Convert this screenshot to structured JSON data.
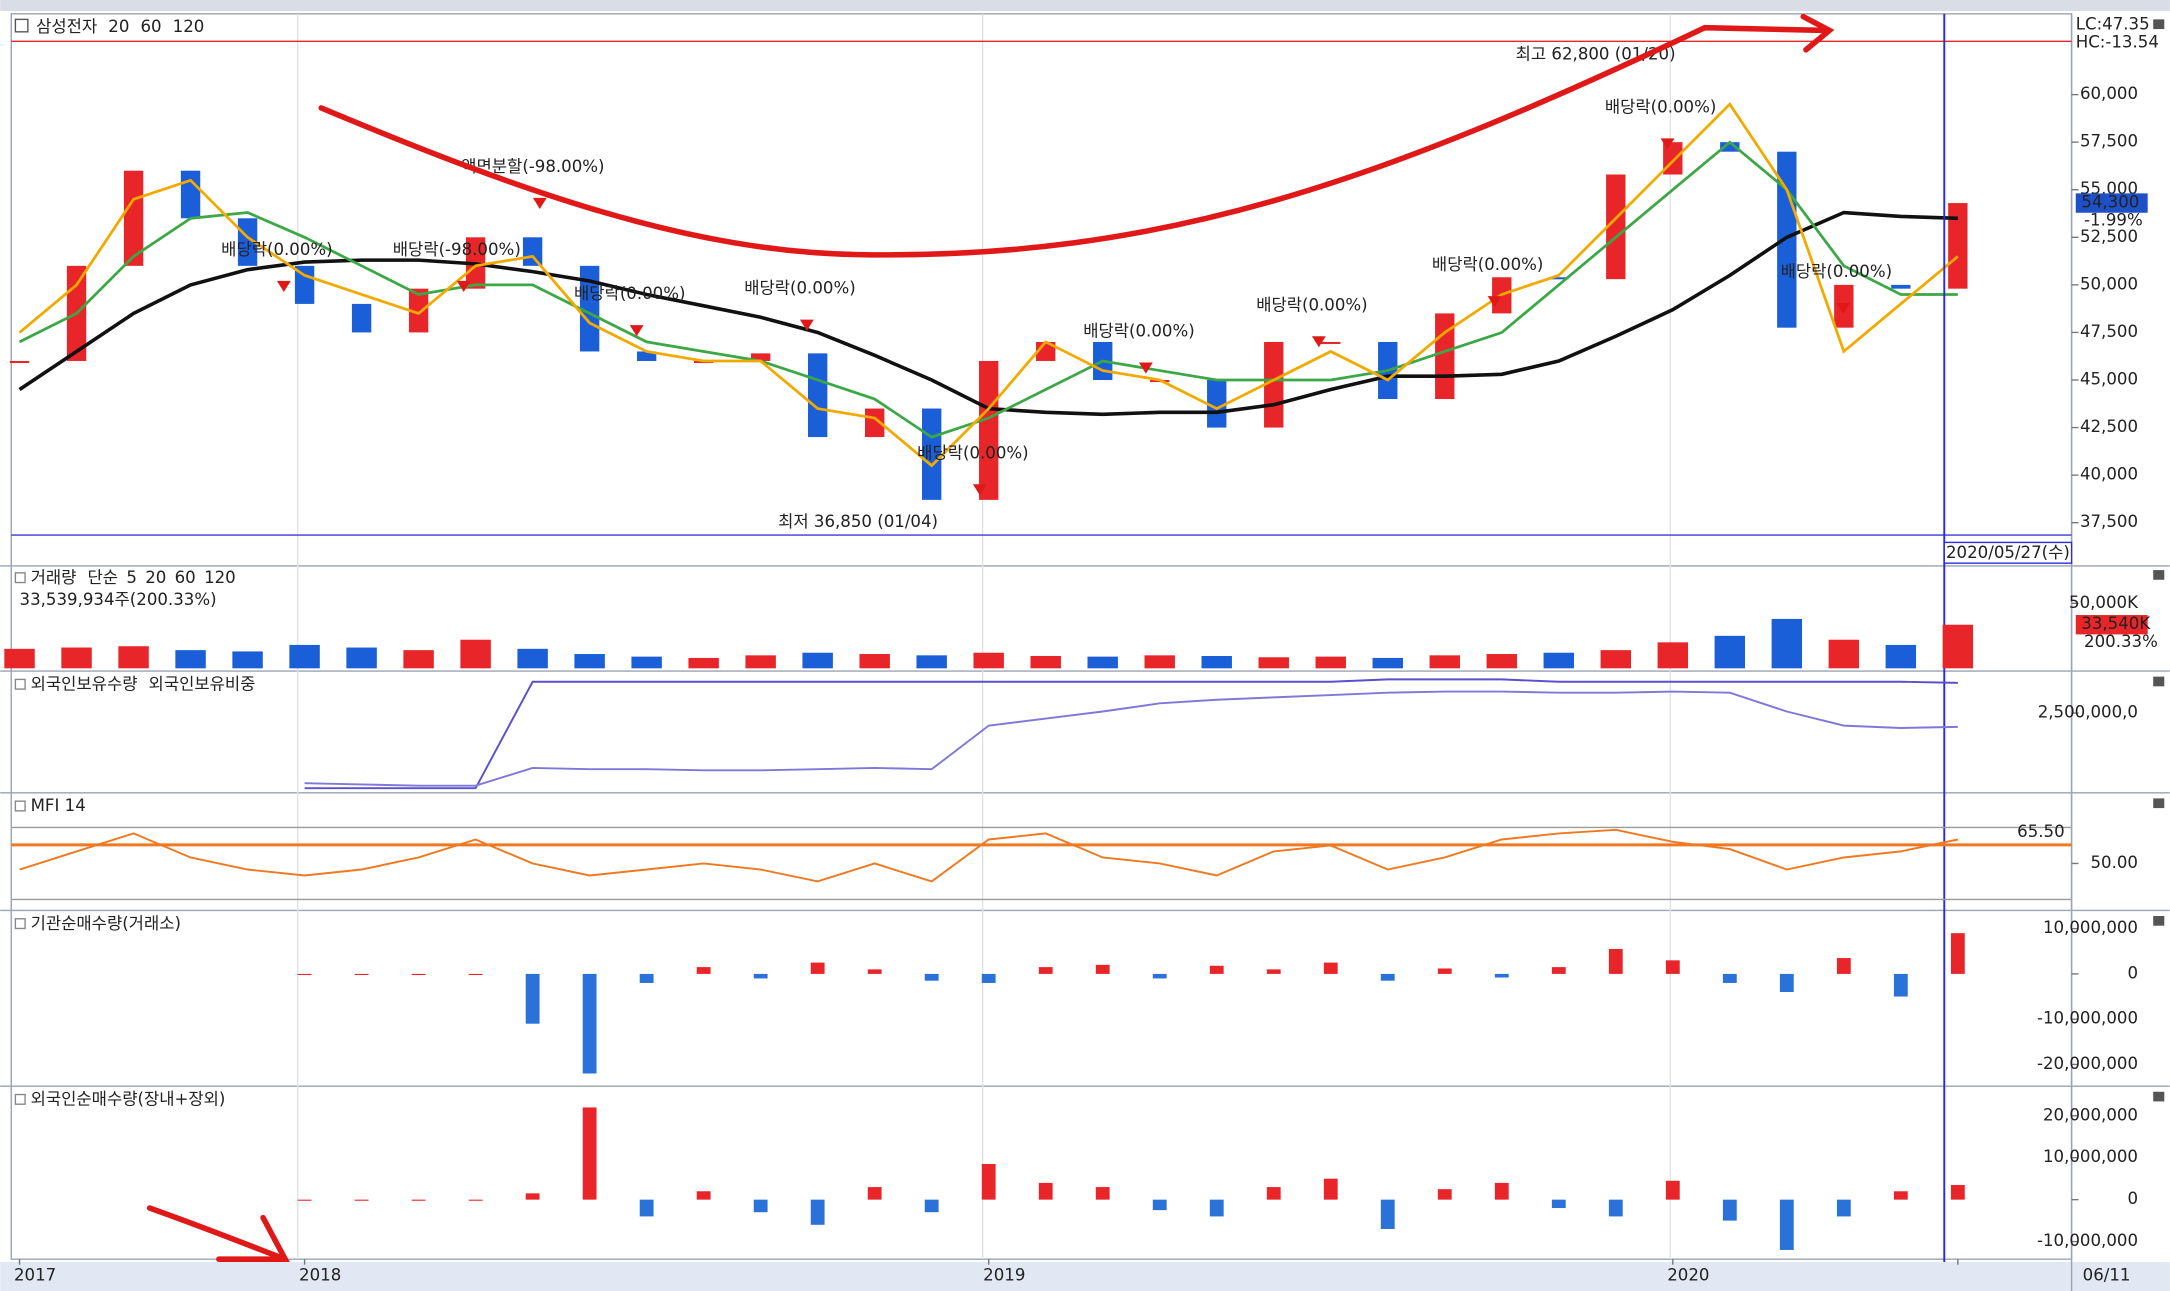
{
  "chart_data": [
    {
      "type": "candle",
      "categories": [
        "2017",
        null,
        null,
        null,
        null,
        "2018",
        null,
        null,
        null,
        null,
        null,
        null,
        null,
        null,
        null,
        null,
        null,
        "2019",
        null,
        null,
        null,
        null,
        null,
        null,
        null,
        null,
        null,
        null,
        null,
        "2020",
        null,
        null,
        null,
        null,
        "06/11"
      ],
      "series": [
        {
          "name": "삼성전자",
          "color": "#e8262a",
          "down_color": "#1a5fd8",
          "values": [
            46000,
            51000,
            56000,
            53500,
            51000,
            49000,
            47500,
            49800,
            52500,
            51000,
            46500,
            46000,
            46000,
            46400,
            42000,
            43500,
            38700,
            46000,
            47000,
            45000,
            45000,
            42500,
            47000,
            47000,
            44000,
            48500,
            50400,
            50300,
            55800,
            57500,
            57000,
            47750,
            50000,
            49800,
            54300
          ]
        },
        {
          "name": "20",
          "color": "#f2a900",
          "values": [
            47500,
            50000,
            54500,
            55500,
            52500,
            50500,
            49500,
            48500,
            51000,
            51500,
            48000,
            46500,
            46000,
            46000,
            43500,
            43000,
            40500,
            43500,
            47000,
            45500,
            45000,
            43500,
            45000,
            46500,
            45000,
            47500,
            49500,
            50500,
            53500,
            56500,
            59500,
            55000,
            46500,
            49000,
            51500
          ]
        },
        {
          "name": "60",
          "color": "#3ca845",
          "values": [
            47000,
            48500,
            51500,
            53500,
            53800,
            52500,
            51000,
            49500,
            50000,
            50000,
            48500,
            47000,
            46500,
            46000,
            45000,
            44000,
            42000,
            43000,
            44500,
            46000,
            45500,
            45000,
            45000,
            45000,
            45500,
            46500,
            47500,
            50000,
            52500,
            55000,
            57500,
            55000,
            51000,
            49500,
            49500
          ]
        },
        {
          "name": "120",
          "color": "#111111",
          "values": [
            44500,
            46500,
            48500,
            50000,
            50800,
            51200,
            51300,
            51300,
            51100,
            50700,
            50200,
            49500,
            48900,
            48300,
            47500,
            46300,
            45000,
            43500,
            43300,
            43200,
            43300,
            43300,
            43700,
            44500,
            45200,
            45200,
            45300,
            46000,
            47300,
            48700,
            50500,
            52500,
            53800,
            53600,
            53500
          ]
        }
      ],
      "ylim": [
        35300,
        64100
      ],
      "yticks": [
        {
          "value": 37500,
          "label": "37,500"
        },
        {
          "value": 40000,
          "label": "40,000"
        },
        {
          "value": 42500,
          "label": "42,500"
        },
        {
          "value": 45000,
          "label": "45,000"
        },
        {
          "value": 47500,
          "label": "47,500"
        },
        {
          "value": 50000,
          "label": "50,000"
        },
        {
          "value": 52500,
          "label": "52,500"
        },
        {
          "value": 55000,
          "label": "55,000"
        },
        {
          "value": 57500,
          "label": "57,500"
        },
        {
          "value": 60000,
          "label": "60,000"
        }
      ],
      "high": {
        "value": 62800,
        "label": "최고 62,800 (01/20)",
        "color": "#e8262a"
      },
      "low": {
        "value": 36850,
        "label": "최저 36,850 (01/04)",
        "color": "#3a3ad8"
      },
      "corner_labels": [
        "LC:47.35",
        "HC:-13.54"
      ],
      "last": {
        "value": 54300,
        "label": "54,300",
        "color": "#1e50c8"
      },
      "last_change": "-1.99%",
      "cursor": "2020/05/27(수)",
      "events": [
        "배당락(0.00%)",
        "배당락(-98.00%)",
        "액면분할(-98.00%)",
        "배당락(0.00%)",
        "배당락(0.00%)",
        "배당락(0.00%)",
        "배당락(0.00%)",
        "배당락(0.00%)",
        "배당락(0.00%)",
        "배당락(0.00%)",
        "배당락(0.00%)"
      ]
    },
    {
      "type": "bar",
      "series": [
        {
          "name": "거래량",
          "color": "#e8262a",
          "down_color": "#1a5fd8",
          "values": [
            15000,
            16000,
            17000,
            14000,
            13000,
            18000,
            16000,
            14000,
            22000,
            15000,
            11000,
            9000,
            8000,
            10000,
            12000,
            11000,
            10000,
            12000,
            9500,
            9000,
            10000,
            9500,
            8500,
            9000,
            8000,
            10000,
            11000,
            12000,
            14000,
            20000,
            25000,
            38000,
            22000,
            18000,
            33540
          ]
        }
      ],
      "legend": [
        {
          "label": "단순",
          "color": "#d03bd0"
        },
        {
          "label": "5",
          "color": "#d03bd0"
        },
        {
          "label": "20",
          "color": "#f2a900"
        },
        {
          "label": "60",
          "color": "#3ca845"
        },
        {
          "label": "120",
          "color": "#888888"
        }
      ],
      "info": "33,539,934주(200.33%)",
      "ylim": [
        0,
        77700
      ],
      "yticks": [
        {
          "value": 50000,
          "label": "50,000K"
        }
      ],
      "last": {
        "value": 33540,
        "label": "33,540K",
        "color": "#e8262a"
      },
      "last_change": "200.33%"
    },
    {
      "type": "line",
      "series": [
        {
          "name": "외국인보유수량",
          "color": "#5a4fcf",
          "values": [
            null,
            null,
            null,
            null,
            null,
            1830000000,
            1830000000,
            1830000000,
            1830000000,
            2780000000,
            2780000000,
            2780000000,
            2780000000,
            2780000000,
            2780000000,
            2780000000,
            2780000000,
            2780000000,
            2780000000,
            2780000000,
            2780000000,
            2780000000,
            2780000000,
            2780000000,
            2800000000,
            2800000000,
            2800000000,
            2780000000,
            2780000000,
            2780000000,
            2780000000,
            2780000000,
            2780000000,
            2780000000,
            2770000000
          ]
        },
        {
          "name": "외국인보유비중",
          "color": "#7f78d8",
          "axis": "y2",
          "values": [
            null,
            null,
            null,
            null,
            null,
            49.7,
            49.6,
            49.5,
            49.5,
            51.0,
            50.9,
            50.9,
            50.8,
            50.8,
            50.9,
            51.0,
            50.9,
            54.6,
            55.2,
            55.8,
            56.5,
            56.8,
            57.0,
            57.2,
            57.4,
            57.5,
            57.5,
            57.4,
            57.4,
            57.5,
            57.4,
            55.8,
            54.6,
            54.4,
            54.5
          ]
        }
      ],
      "ylim": [
        1800000000,
        2850000000
      ],
      "y2lim": [
        49,
        59
      ],
      "yticks": [
        {
          "value": 2500000000,
          "label": "2,500,000,0"
        }
      ]
    },
    {
      "type": "line",
      "series": [
        {
          "name": "MFI 14",
          "color": "#f07820",
          "values": [
            45,
            60,
            75,
            55,
            45,
            40,
            45,
            55,
            70,
            50,
            40,
            45,
            50,
            45,
            35,
            50,
            35,
            70,
            75,
            55,
            50,
            40,
            60,
            65,
            45,
            55,
            70,
            75,
            78,
            68,
            62,
            45,
            55,
            60,
            70
          ]
        }
      ],
      "ylim": [
        12,
        106.5
      ],
      "yticks": [
        {
          "value": 50,
          "label": "50.00"
        }
      ],
      "levels": [
        80,
        20
      ],
      "reference": {
        "value": 65.5,
        "label": "65.50",
        "color": "#f07820"
      }
    },
    {
      "type": "bar",
      "series": [
        {
          "name": "기관순매수량(거래소)",
          "color": "#e8262a",
          "down_color": "#2a72d8",
          "values": [
            null,
            null,
            null,
            null,
            null,
            0,
            0,
            0,
            0,
            -11000000,
            -22000000,
            -2000000,
            1500000,
            -1000000,
            2500000,
            1000000,
            -1500000,
            -2000000,
            1500000,
            2000000,
            -1000000,
            1800000,
            1000000,
            2500000,
            -1500000,
            1200000,
            -800000,
            1500000,
            5500000,
            3000000,
            -2000000,
            -4000000,
            3500000,
            -5000000,
            9000000
          ]
        }
      ],
      "ylim": [
        -24200000,
        13400000
      ],
      "yticks": [
        {
          "value": 10000000,
          "label": "10,000,000"
        },
        0,
        {
          "value": -10000000,
          "label": "-10,000,000"
        },
        {
          "value": -20000000,
          "label": "-20,000,000"
        }
      ]
    },
    {
      "type": "bar",
      "series": [
        {
          "name": "외국인순매수량(장내+장외)",
          "color": "#e8262a",
          "down_color": "#2a72d8",
          "values": [
            null,
            null,
            null,
            null,
            null,
            0,
            0,
            0,
            0,
            1500000,
            22000000,
            -4000000,
            2000000,
            -3000000,
            -6000000,
            3000000,
            -3000000,
            8500000,
            4000000,
            3000000,
            -2500000,
            -4000000,
            3000000,
            5000000,
            -7000000,
            2500000,
            4000000,
            -2000000,
            -4000000,
            4500000,
            -5000000,
            -12000000,
            -4000000,
            2000000,
            3500000
          ]
        }
      ],
      "ylim": [
        -14200000,
        26400000
      ],
      "yticks": [
        {
          "value": 20000000,
          "label": "20,000,000"
        },
        {
          "value": 10000000,
          "label": "10,000,000"
        },
        0,
        {
          "value": -10000000,
          "label": "-10,000,000"
        }
      ]
    }
  ]
}
